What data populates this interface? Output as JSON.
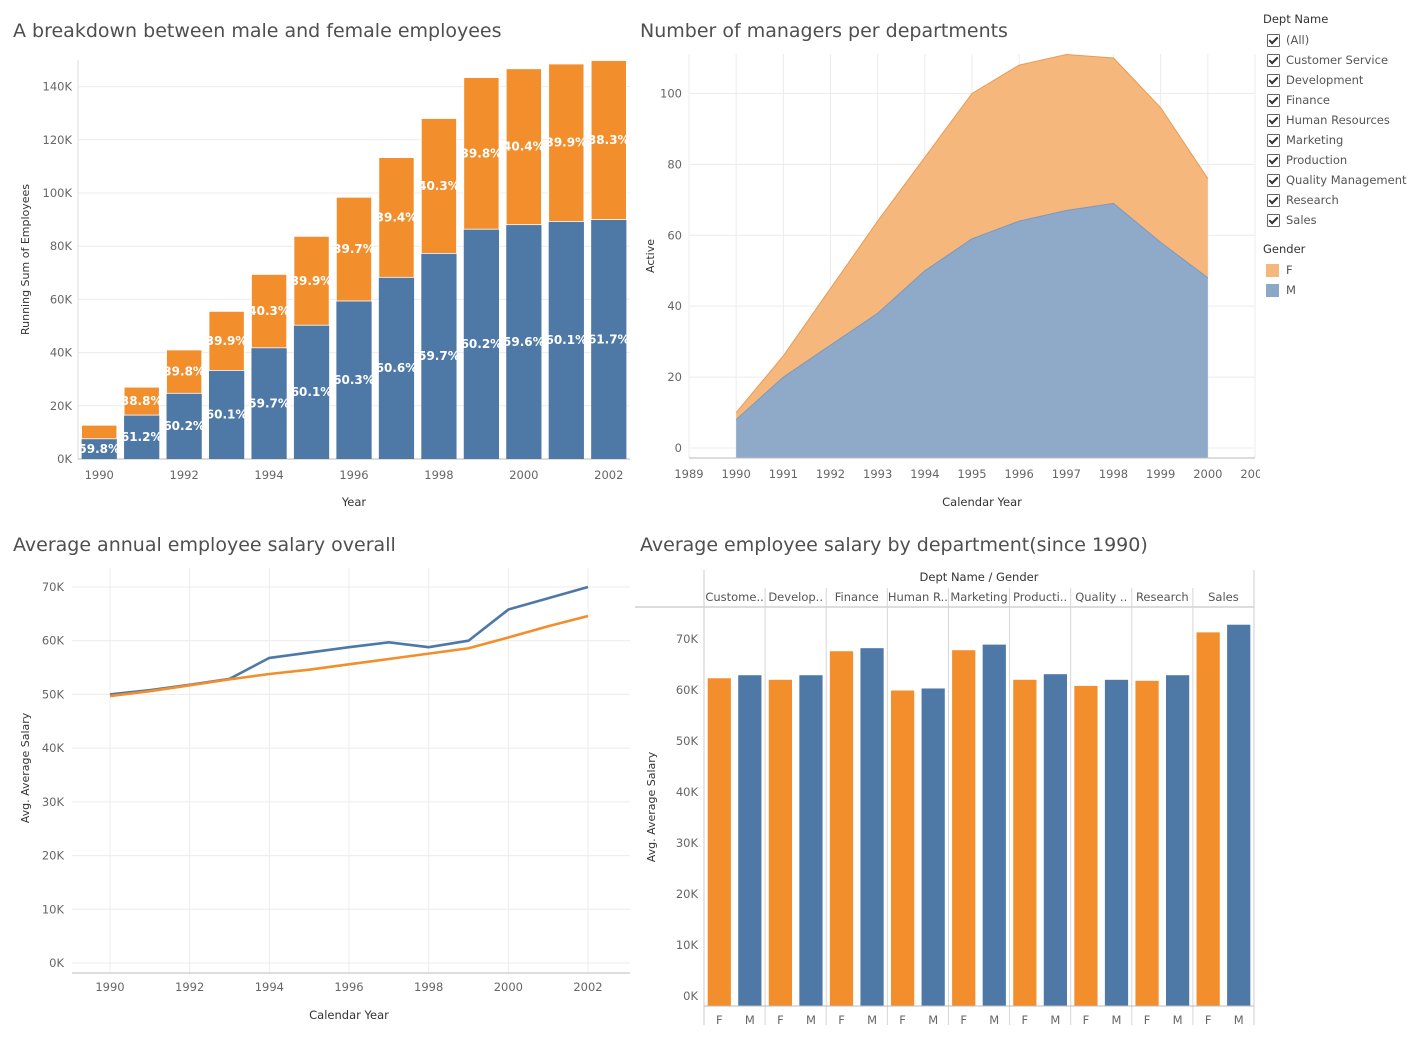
{
  "titles": {
    "gender_breakdown": "A breakdown between male and female employees",
    "managers": "Number of managers per departments",
    "avg_salary": "Average annual employee salary overall",
    "dept_salary": "Average employee salary by department(since 1990)"
  },
  "legend": {
    "dept_title": "Dept Name",
    "dept_items": [
      "(All)",
      "Customer Service",
      "Development",
      "Finance",
      "Human Resources",
      "Marketing",
      "Production",
      "Quality Management",
      "Research",
      "Sales"
    ],
    "gender_title": "Gender",
    "gender_items": [
      {
        "label": "F",
        "color": "#f5b77c"
      },
      {
        "label": "M",
        "color": "#8da7c6"
      }
    ]
  },
  "colors": {
    "female": "#f28e2b",
    "male": "#4e79a7",
    "female_area": "#f5b77c",
    "male_area": "#8fa9c8"
  },
  "chart_data": [
    {
      "type": "bar",
      "title": "A breakdown between male and female employees",
      "xlabel": "Year",
      "ylabel": "Running Sum of Employees",
      "ylim": [
        0,
        150000
      ],
      "yticks": [
        "0K",
        "20K",
        "40K",
        "60K",
        "80K",
        "100K",
        "120K",
        "140K"
      ],
      "xtick_labels": [
        "1990",
        "1992",
        "1994",
        "1996",
        "1998",
        "2000",
        "2002"
      ],
      "categories": [
        1990,
        1991,
        1992,
        1993,
        1994,
        1995,
        1996,
        1997,
        1998,
        1999,
        2000,
        2001,
        2002
      ],
      "series": [
        {
          "name": "M",
          "values": [
            7600,
            16500,
            24700,
            33300,
            41800,
            50300,
            59400,
            68300,
            77300,
            86400,
            88100,
            89300,
            90000
          ],
          "labels": [
            "59.8%",
            "61.2%",
            "60.2%",
            "60.1%",
            "59.7%",
            "60.1%",
            "60.3%",
            "60.6%",
            "59.7%",
            "60.2%",
            "59.6%",
            "60.1%",
            "61.7%"
          ]
        },
        {
          "name": "F",
          "values": [
            5100,
            10500,
            16300,
            22200,
            27600,
            33400,
            39000,
            45000,
            50700,
            57000,
            58600,
            59200,
            59800
          ],
          "labels": [
            "",
            "38.8%",
            "39.8%",
            "39.9%",
            "40.3%",
            "39.9%",
            "39.7%",
            "39.4%",
            "40.3%",
            "39.8%",
            "40.4%",
            "39.9%",
            "38.3%"
          ]
        }
      ]
    },
    {
      "type": "area",
      "title": "Number of managers per departments",
      "xlabel": "Calendar Year",
      "ylabel": "Active",
      "ylim": [
        0,
        115
      ],
      "xlim": [
        1989,
        2001
      ],
      "yticks": [
        0,
        20,
        40,
        60,
        80,
        100
      ],
      "x": [
        1990,
        1991,
        1992,
        1993,
        1994,
        1995,
        1996,
        1997,
        1998,
        1999,
        2000
      ],
      "series": [
        {
          "name": "M",
          "values": [
            8,
            20,
            29,
            38,
            50,
            59,
            64,
            67,
            69,
            58,
            48
          ]
        },
        {
          "name": "F",
          "values": [
            2,
            6,
            16,
            26,
            32,
            41,
            44,
            44,
            41,
            38,
            28
          ]
        }
      ]
    },
    {
      "type": "line",
      "title": "Average annual employee salary overall",
      "xlabel": "Calendar Year",
      "ylabel": "Avg. Average Salary",
      "ylim": [
        0,
        72000
      ],
      "yticks": [
        "0K",
        "10K",
        "20K",
        "30K",
        "40K",
        "50K",
        "60K",
        "70K"
      ],
      "xtick_labels": [
        "1990",
        "1992",
        "1994",
        "1996",
        "1998",
        "2000",
        "2002"
      ],
      "x": [
        1990,
        1991,
        1992,
        1993,
        1994,
        1995,
        1996,
        1997,
        1998,
        1999,
        2000,
        2001,
        2002
      ],
      "series": [
        {
          "name": "M",
          "values": [
            50000,
            50800,
            51800,
            52900,
            56800,
            57800,
            58800,
            59700,
            58800,
            60000,
            65800,
            67900,
            70000
          ]
        },
        {
          "name": "F",
          "values": [
            49700,
            50600,
            51700,
            52800,
            53800,
            54600,
            55600,
            56600,
            57600,
            58600,
            60600,
            62700,
            64600
          ]
        }
      ]
    },
    {
      "type": "bar",
      "title": "Average employee salary by department(since 1990)",
      "header": "Dept Name / Gender",
      "ylabel": "Avg. Average Salary",
      "ylim": [
        0,
        76000
      ],
      "yticks": [
        "0K",
        "10K",
        "20K",
        "30K",
        "40K",
        "50K",
        "60K",
        "70K"
      ],
      "categories": [
        "Custome..",
        "Develop..",
        "Finance",
        "Human R..",
        "Marketing",
        "Producti..",
        "Quality ..",
        "Research",
        "Sales"
      ],
      "genders": [
        "F",
        "M"
      ],
      "series": [
        {
          "name": "F",
          "values": [
            62300,
            62000,
            67600,
            59900,
            67800,
            62000,
            60800,
            61800,
            71300
          ]
        },
        {
          "name": "M",
          "values": [
            62900,
            62900,
            68200,
            60300,
            68900,
            63100,
            62000,
            62900,
            72800
          ]
        }
      ]
    }
  ]
}
